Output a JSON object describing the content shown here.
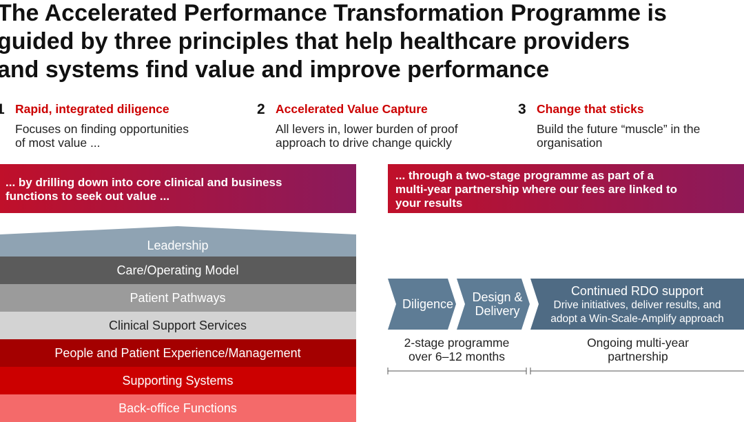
{
  "title": [
    "The Accelerated Performance Transformation Programme is",
    "guided by three principles that help healthcare providers",
    "and systems find value and improve performance"
  ],
  "principles": [
    {
      "number": "1",
      "title": "Rapid, integrated diligence",
      "text": [
        "Focuses on finding opportunities",
        "of most value ..."
      ]
    },
    {
      "number": "2",
      "title": "Accelerated Value Capture",
      "text": [
        "All levers in, lower burden of proof",
        "approach to drive change quickly"
      ]
    },
    {
      "number": "3",
      "title": "Change that sticks",
      "text": [
        "Build the future “muscle” in the",
        "organisation"
      ]
    }
  ],
  "banners": [
    [
      "... by drilling down into core clinical and business",
      "functions to seek out value ..."
    ],
    [
      "... through a two-stage programme as part of a",
      "multi-year partnership where our fees are linked to",
      "your results"
    ]
  ],
  "layers": [
    {
      "label": "Leadership",
      "color": "#8fa3b3"
    },
    {
      "label": "Care/Operating Model",
      "color": "#5b5b5b"
    },
    {
      "label": "Patient Pathways",
      "color": "#9b9b9b"
    },
    {
      "label": "Clinical Support Services",
      "color": "#d3d3d3"
    },
    {
      "label": "People and Patient Experience/Management",
      "color": "#a40000"
    },
    {
      "label": "Supporting Systems",
      "color": "#cc0000"
    },
    {
      "label": "Back-office Functions",
      "color": "#f46a6a"
    }
  ],
  "stages": [
    {
      "lines": [
        "Diligence"
      ]
    },
    {
      "lines": [
        "Design &",
        "Delivery"
      ]
    },
    {
      "lines": [
        "Continued RDO support"
      ],
      "sub": [
        "Drive initiatives, deliver results, and",
        "adopt a Win-Scale-Amplify approach"
      ]
    }
  ],
  "timeline": [
    [
      "2-stage programme",
      "over 6–12 months"
    ],
    [
      "Ongoing multi-year",
      "partnership"
    ]
  ]
}
